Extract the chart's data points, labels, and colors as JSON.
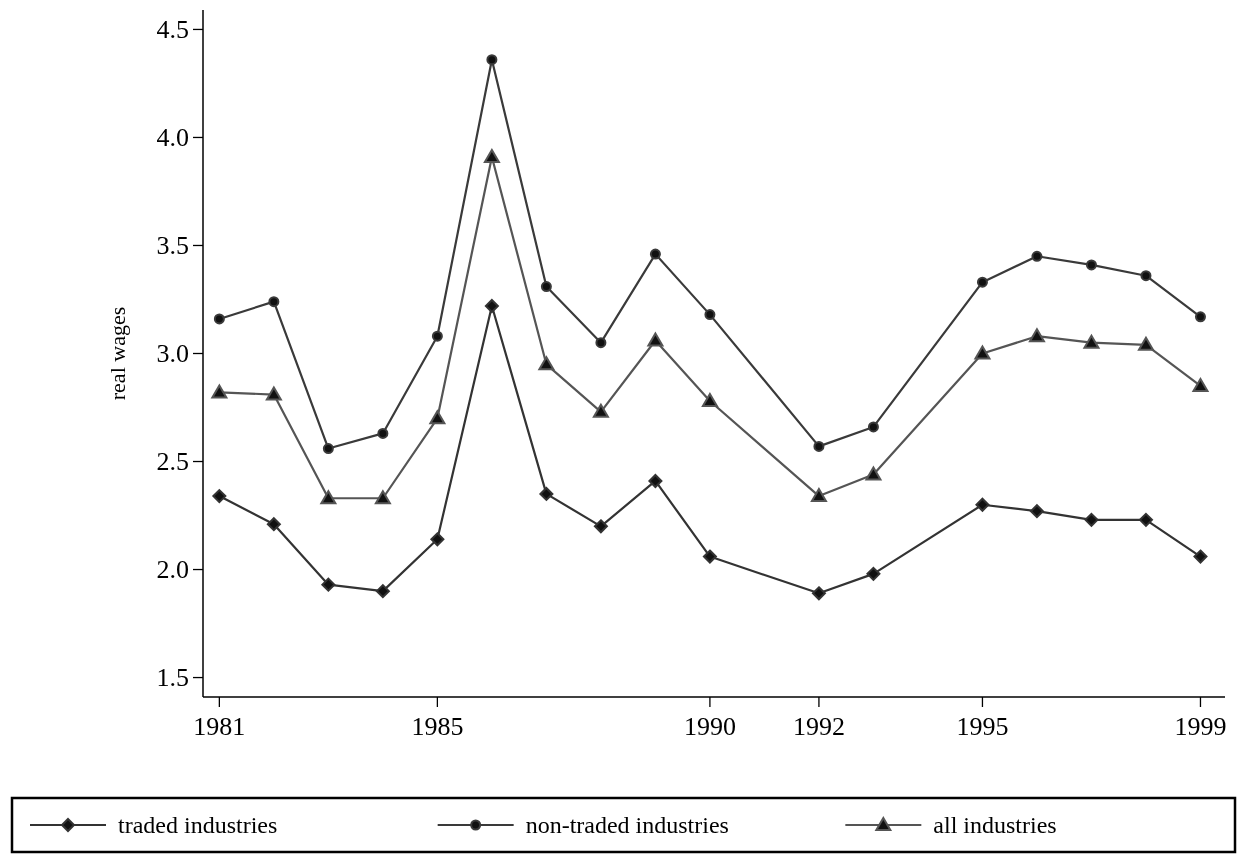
{
  "chart_data": {
    "type": "line",
    "ylabel": "real wages",
    "x": [
      1981,
      1982,
      1983,
      1984,
      1985,
      1986,
      1987,
      1988,
      1989,
      1990,
      1992,
      1993,
      1995,
      1996,
      1997,
      1998,
      1999
    ],
    "xlim": [
      1980.7,
      1999.45
    ],
    "xticks": [
      1981,
      1985,
      1990,
      1992,
      1995,
      1999
    ],
    "ylim": [
      1.41,
      4.59
    ],
    "yticks": [
      1.5,
      {
        "value": 2,
        "label": "2.0"
      },
      2.5,
      {
        "value": 3,
        "label": "3.0"
      },
      3.5,
      {
        "value": 4,
        "label": "4.0"
      },
      4.5
    ],
    "series": [
      {
        "name": "traded industries",
        "color": "#333333",
        "marker": "diamond",
        "values": [
          2.34,
          2.21,
          1.93,
          1.9,
          2.14,
          3.22,
          2.35,
          2.2,
          2.41,
          2.06,
          1.89,
          1.98,
          2.3,
          2.27,
          2.23,
          2.23,
          2.06
        ]
      },
      {
        "name": "non-traded industries",
        "color": "#3a3a3a",
        "marker": "circle",
        "values": [
          3.16,
          3.24,
          2.56,
          2.63,
          3.08,
          4.36,
          3.31,
          3.05,
          3.46,
          3.18,
          2.57,
          2.66,
          3.33,
          3.45,
          3.41,
          3.36,
          3.17
        ]
      },
      {
        "name": "all industries",
        "color": "#555555",
        "marker": "triangle",
        "values": [
          2.82,
          2.81,
          2.33,
          2.33,
          2.7,
          3.91,
          2.95,
          2.73,
          3.06,
          2.78,
          2.34,
          2.44,
          3.0,
          3.08,
          3.05,
          3.04,
          2.85
        ]
      }
    ],
    "legend": "bottom",
    "grid": false,
    "line_style": "solid"
  }
}
